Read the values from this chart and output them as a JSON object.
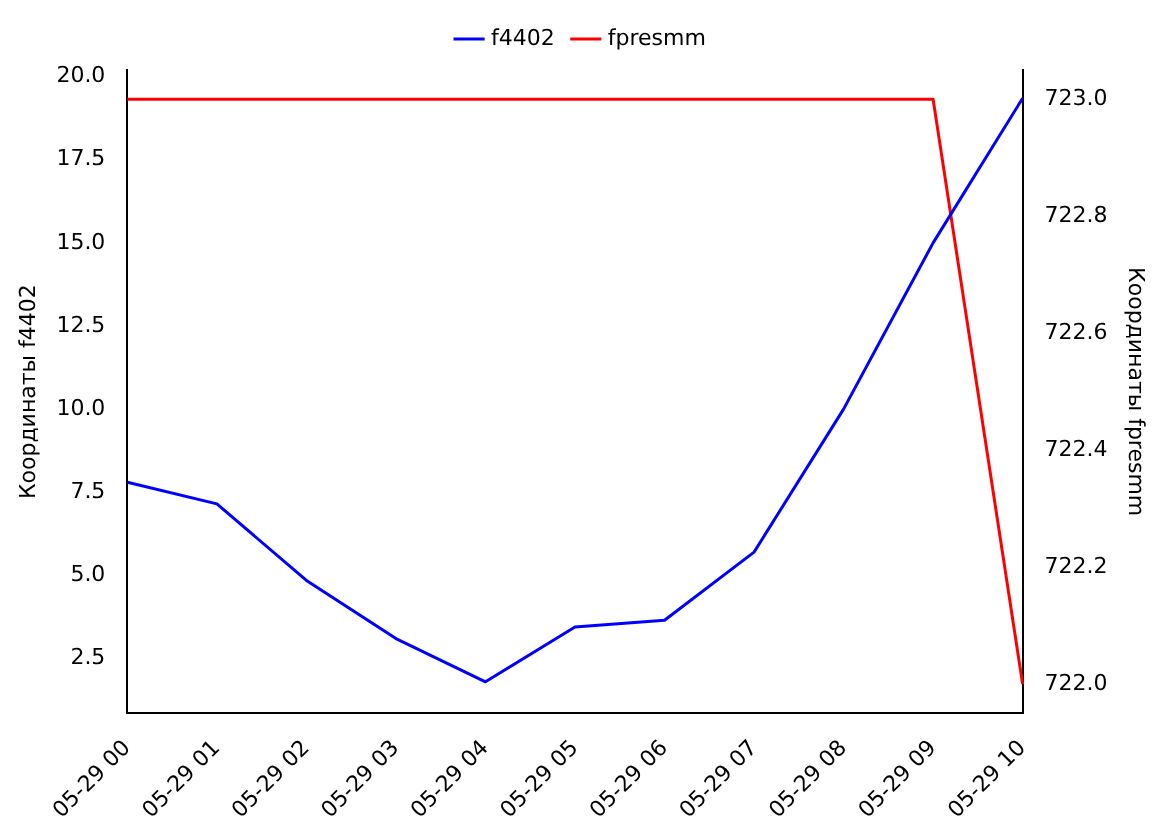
{
  "chart_data": {
    "type": "line",
    "categories": [
      "05-29 00",
      "05-29 01",
      "05-29 02",
      "05-29 03",
      "05-29 04",
      "05-29 05",
      "05-29 06",
      "05-29 07",
      "05-29 08",
      "05-29 09",
      "05-29 10"
    ],
    "series": [
      {
        "name": "f4402",
        "color": "#0000ff",
        "values": [
          7.8,
          7.15,
          4.85,
          3.1,
          1.8,
          3.45,
          3.65,
          5.7,
          10.0,
          15.0,
          19.35
        ]
      },
      {
        "name": "fpresmm",
        "color": "#ff0000",
        "axis": "y2",
        "values": [
          723.0,
          723.0,
          723.0,
          723.0,
          723.0,
          723.0,
          723.0,
          723.0,
          723.0,
          723.0,
          722.0
        ]
      }
    ],
    "ylabel": "Координаты f4402",
    "y2label": "Координаты fpresmm",
    "ylim": [
      0.85,
      20.2
    ],
    "yticks": [
      {
        "value": 2.5,
        "label": "2.5"
      },
      {
        "value": 5,
        "label": "5.0"
      },
      {
        "value": 7.5,
        "label": "7.5"
      },
      {
        "value": 10,
        "label": "10.0"
      },
      {
        "value": 12.5,
        "label": "12.5"
      },
      {
        "value": 15,
        "label": "15.0"
      },
      {
        "value": 17.5,
        "label": "17.5"
      },
      {
        "value": 20,
        "label": "20.0"
      }
    ],
    "y2lim": [
      721.95,
      723.05
    ],
    "y2ticks": [
      {
        "value": 722,
        "label": "722.0"
      },
      {
        "value": 722.2,
        "label": "722.2"
      },
      {
        "value": 722.4,
        "label": "722.4"
      },
      {
        "value": 722.6,
        "label": "722.6"
      },
      {
        "value": 722.8,
        "label": "722.8"
      },
      {
        "value": 723,
        "label": "723.0"
      }
    ],
    "legend": "top",
    "grid": false,
    "marker": "none",
    "line_style": "solid"
  }
}
